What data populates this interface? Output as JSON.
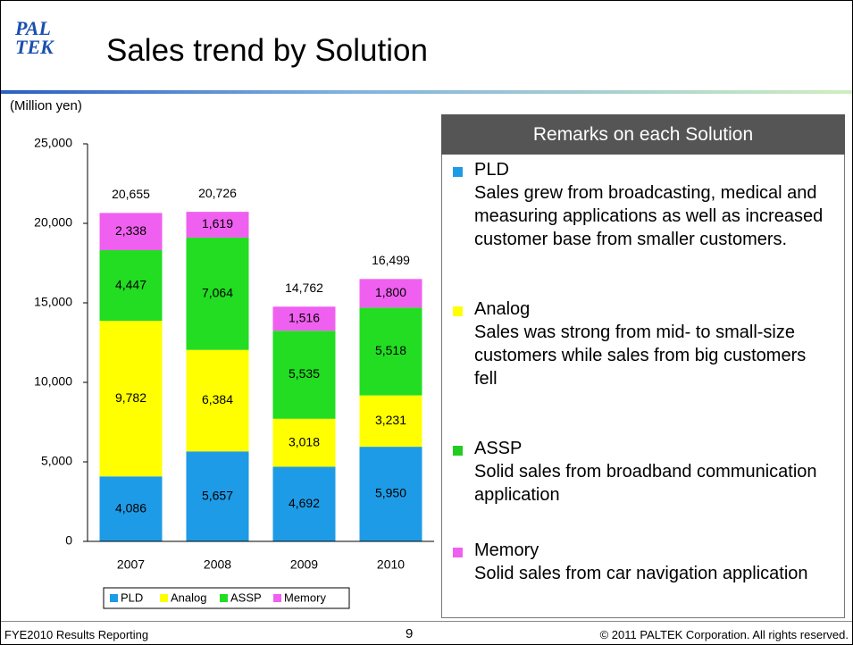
{
  "slide": {
    "logo": [
      "PAL",
      "TEK"
    ],
    "title": "Sales trend by Solution",
    "remarks": {
      "heading": "Remarks on each Solution",
      "items": [
        {
          "name": "PLD",
          "color": "#1e9be6",
          "text": "Sales grew from broadcasting, medical and measuring applications as well as increased customer base from smaller customers."
        },
        {
          "name": "Analog",
          "color": "#ffff00",
          "text": "Sales was strong from mid- to small-size customers while sales from big customers fell"
        },
        {
          "name": "ASSP",
          "color": "#22cc22",
          "text": "Solid sales from broadband communication application"
        },
        {
          "name": "Memory",
          "color": "#f060f0",
          "text": "Solid sales from car navigation application"
        }
      ]
    },
    "footer": {
      "left": "FYE2010 Results Reporting",
      "page": "9",
      "right": "© 2011 PALTEK Corporation. All rights reserved."
    }
  },
  "chart_data": {
    "type": "stacked_bar",
    "y_label": "(Million yen)",
    "categories": [
      "2007",
      "2008",
      "2009",
      "2010"
    ],
    "series": [
      {
        "name": "PLD",
        "color": "#1e9be6",
        "values": [
          4086,
          5657,
          4692,
          5950
        ],
        "value_labels": [
          "4,086",
          "5,657",
          "4,692",
          "5,950"
        ]
      },
      {
        "name": "Analog",
        "color": "#ffff00",
        "values": [
          9782,
          6384,
          3018,
          3231
        ],
        "value_labels": [
          "9,782",
          "6,384",
          "3,018",
          "3,231"
        ]
      },
      {
        "name": "ASSP",
        "color": "#22dd22",
        "values": [
          4447,
          7064,
          5535,
          5518
        ],
        "value_labels": [
          "4,447",
          "7,064",
          "5,535",
          "5,518"
        ]
      },
      {
        "name": "Memory",
        "color": "#f060f0",
        "values": [
          2338,
          1619,
          1516,
          1800
        ],
        "value_labels": [
          "2,338",
          "1,619",
          "1,516",
          "1,800"
        ]
      }
    ],
    "totals": {
      "values": [
        20655,
        20726,
        14762,
        16499
      ],
      "value_labels": [
        "20,655",
        "20,726",
        "14,762",
        "16,499"
      ]
    },
    "ylim": [
      0,
      25000
    ],
    "yticks": [
      0,
      {
        "value": 5000,
        "label": "5,000"
      },
      {
        "value": 10000,
        "label": "10,000"
      },
      {
        "value": 15000,
        "label": "15,000"
      },
      {
        "value": 20000,
        "label": "20,000"
      },
      {
        "value": 25000,
        "label": "25,000"
      }
    ],
    "legend": "bottom"
  }
}
